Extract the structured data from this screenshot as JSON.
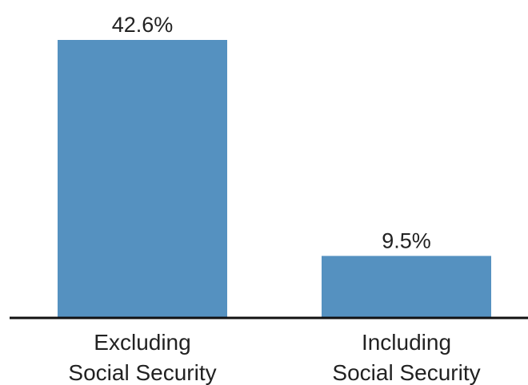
{
  "chart_data": {
    "type": "bar",
    "categories": [
      [
        "Excluding",
        "Social Security"
      ],
      [
        "Including",
        "Social Security"
      ]
    ],
    "values": [
      42.6,
      9.5
    ],
    "data_labels": [
      "42.6%",
      "9.5%"
    ],
    "title": "",
    "xlabel": "",
    "ylabel": "",
    "ylim": [
      0,
      42.6
    ],
    "grid": false,
    "legend": "none",
    "colors": {
      "bar": "#5591c0",
      "axis": "#111111"
    }
  }
}
